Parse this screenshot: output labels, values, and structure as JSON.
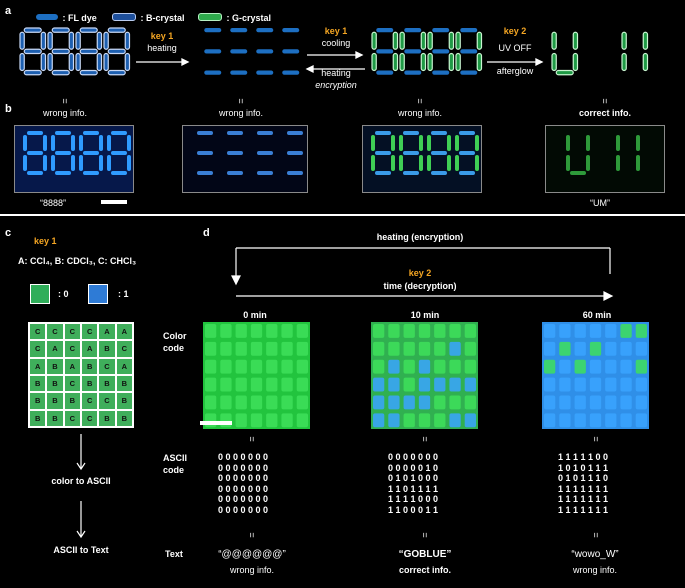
{
  "panel_a": {
    "label": "a",
    "legend": [
      {
        "text": ": FL dye",
        "color": "#1d6fc2"
      },
      {
        "text": ": B-crystal",
        "color": "#8fb0e8"
      },
      {
        "text": ": G-crystal",
        "color": "#3fd06a"
      }
    ],
    "step1": {
      "key": "key 1",
      "text": "heating"
    },
    "step2": {
      "key": "key 1",
      "text_top": "cooling",
      "text_bottom": "heating",
      "text_bottom2": "encryption"
    },
    "step3": {
      "key": "key 2",
      "text_top": "UV OFF",
      "text_bottom": "afterglow"
    }
  },
  "panel_b": {
    "label": "b",
    "eq": "=",
    "captions": [
      "wrong info.",
      "wrong info.",
      "wrong info.",
      "correct info."
    ],
    "bottom_left": "“8888”",
    "bottom_right": "“UM”"
  },
  "panel_c": {
    "label": "c",
    "key": "key 1",
    "solvents": "A: CCl₄, B: CDCl₃, C: CHCl₃",
    "zero": ": 0",
    "one": ": 1",
    "grid": [
      [
        "C",
        "C",
        "C",
        "C",
        "A",
        "A"
      ],
      [
        "C",
        "A",
        "C",
        "A",
        "B",
        "C"
      ],
      [
        "A",
        "B",
        "A",
        "B",
        "C",
        "A"
      ],
      [
        "B",
        "B",
        "C",
        "B",
        "B",
        "B"
      ],
      [
        "B",
        "B",
        "B",
        "C",
        "C",
        "B"
      ],
      [
        "B",
        "B",
        "C",
        "C",
        "B",
        "B"
      ]
    ],
    "step1": "color to ASCII",
    "step2": "ASCII to Text"
  },
  "panel_d": {
    "label": "d",
    "top_arrow": "heating (encryption)",
    "key": "key 2",
    "time_arrow": "time (decryption)",
    "times": [
      "0 min",
      "10 min",
      "60 min"
    ],
    "row_color": "Color\ncode",
    "row_ascii": "ASCII\ncode",
    "row_text": "Text",
    "eq": "=",
    "ascii": [
      [
        "0 0 0 0 0 0 0",
        "0 0 0 0 0 0 0",
        "0 0 0 0 0 0 0",
        "0 0 0 0 0 0 0",
        "0 0 0 0 0 0 0",
        "0 0 0 0 0 0 0"
      ],
      [
        "0 0 0 0 0 0 0",
        "0 0 0 0 0 1 0",
        "0 1 0 1 0 0 0",
        "1 1 0 1 1 1 1",
        "1 1 1 1 0 0 0",
        "1 1 0 0 0 1 1"
      ],
      [
        "1 1 1 1 1 0 0",
        "1 0 1 0 1 1 1",
        "0 1 0 1 1 1 0",
        "1 1 1 1 1 1 1",
        "1 1 1 1 1 1 1",
        "1 1 1 1 1 1 1"
      ]
    ],
    "texts": [
      "“@@@@@@”",
      "“GOBLUE”",
      "“wowo_W”"
    ],
    "verdicts": [
      "wrong info.",
      "correct info.",
      "wrong info."
    ]
  }
}
